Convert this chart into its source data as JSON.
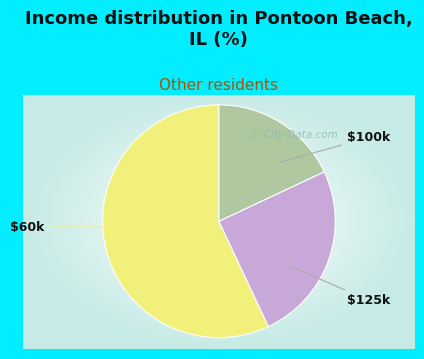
{
  "title": "Income distribution in Pontoon Beach,\nIL (%)",
  "subtitle": "Other residents",
  "slices": [
    {
      "label": "$60k",
      "value": 57,
      "color": "#f0f07a"
    },
    {
      "label": "$100k",
      "value": 25,
      "color": "#c8a8d8"
    },
    {
      "label": "$125k",
      "value": 18,
      "color": "#b0c8a0"
    }
  ],
  "title_color": "#111111",
  "subtitle_color": "#b05000",
  "background_color": "#00eeff",
  "chart_bg_color": "#e0f0ea",
  "watermark": "ⓘ City-Data.com",
  "watermark_color": "#90b8b0",
  "startangle": 90,
  "annotation_fontsize": 9,
  "title_fontsize": 13,
  "subtitle_fontsize": 11
}
